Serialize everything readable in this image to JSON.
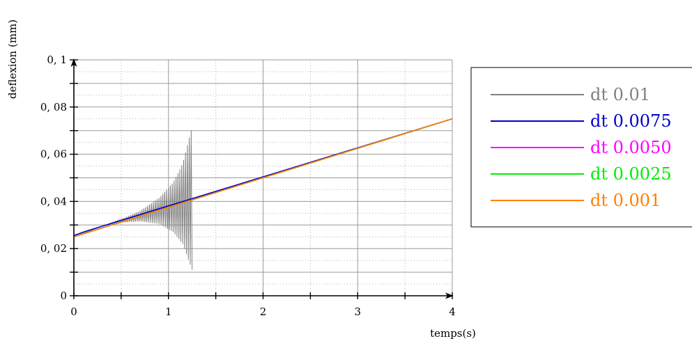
{
  "chart_data": {
    "type": "line",
    "title": "",
    "xlabel": "temps(s)",
    "ylabel": "deflexion (mm)",
    "xlim": [
      0,
      4
    ],
    "ylim": [
      0,
      0.1
    ],
    "x_ticks": [
      0,
      1,
      2,
      3,
      4
    ],
    "x_tick_labels": [
      "0",
      "1",
      "2",
      "3",
      "4"
    ],
    "y_ticks": [
      0,
      0.02,
      0.04,
      0.06,
      0.08,
      0.1
    ],
    "y_tick_labels": [
      "0",
      "0, 02",
      "0, 04",
      "0, 06",
      "0, 08",
      "0, 1"
    ],
    "grid": true,
    "legend_position": "right",
    "series": [
      {
        "name": "dt 0.01",
        "color": "#808080",
        "style": "oscillating-divergent",
        "center": [
          [
            0,
            0.025
          ],
          [
            1.25,
            0.0415
          ]
        ],
        "envelope_upper": [
          [
            0,
            0.025
          ],
          [
            0.3,
            0.0295
          ],
          [
            0.5,
            0.0325
          ],
          [
            0.7,
            0.036
          ],
          [
            0.9,
            0.0415
          ],
          [
            1.05,
            0.048
          ],
          [
            1.15,
            0.056
          ],
          [
            1.25,
            0.0718
          ]
        ],
        "envelope_lower": [
          [
            0,
            0.025
          ],
          [
            0.3,
            0.0295
          ],
          [
            0.5,
            0.031
          ],
          [
            0.7,
            0.0315
          ],
          [
            0.9,
            0.0305
          ],
          [
            1.05,
            0.027
          ],
          [
            1.15,
            0.022
          ],
          [
            1.25,
            0.011
          ]
        ],
        "x_end": 1.25
      },
      {
        "name": "dt 0.0075",
        "color": "#0000cc",
        "points": [
          [
            0,
            0.0255
          ],
          [
            0.1,
            0.027
          ],
          [
            0.3,
            0.0295
          ],
          [
            4,
            0.075
          ]
        ]
      },
      {
        "name": "dt 0.0050",
        "color": "#ff00ff",
        "points": [
          [
            0,
            0.025
          ],
          [
            4,
            0.075
          ]
        ]
      },
      {
        "name": "dt 0.0025",
        "color": "#00ee00",
        "points": [
          [
            0,
            0.025
          ],
          [
            4,
            0.075
          ]
        ]
      },
      {
        "name": "dt 0.001",
        "color": "#ff8000",
        "points": [
          [
            0,
            0.025
          ],
          [
            4,
            0.075
          ]
        ]
      }
    ]
  }
}
